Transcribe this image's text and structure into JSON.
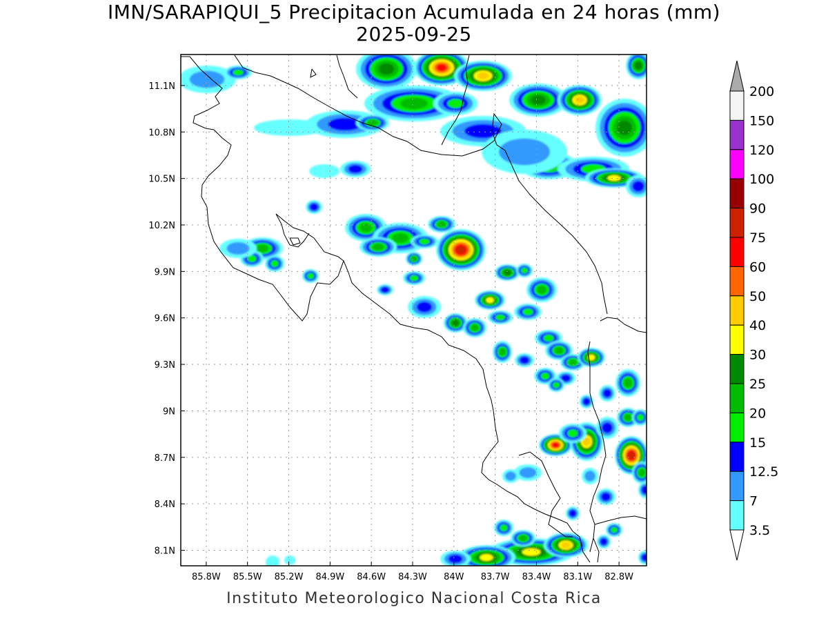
{
  "title": {
    "line1": "IMN/SARAPIQUI_5 Precipitacion Acumulada en 24 horas (mm)",
    "line2": "2025-09-25"
  },
  "footer": "Instituto Meteorologico Nacional Costa Rica",
  "map": {
    "lon_range": [
      -86.1,
      -83.1
    ],
    "lat_range": [
      8.0,
      11.3
    ],
    "lon_ticks": [
      {
        "value": -85.8,
        "label": "85.8W"
      },
      {
        "value": -85.5,
        "label": "85.5W"
      },
      {
        "value": -85.2,
        "label": "85.2W"
      },
      {
        "value": -84.9,
        "label": "84.9W"
      },
      {
        "value": -84.6,
        "label": "84.6W"
      },
      {
        "value": -84.3,
        "label": "84.3W"
      },
      {
        "value": -84.0,
        "label": "84W"
      },
      {
        "value": -83.7,
        "label": "83.7W"
      },
      {
        "value": -83.4,
        "label": "83.4W"
      },
      {
        "value": -83.1,
        "label": "83.1W"
      },
      {
        "value": -82.8,
        "label": "82.8W"
      }
    ],
    "lat_ticks": [
      {
        "value": 11.1,
        "label": "11.1N"
      },
      {
        "value": 10.8,
        "label": "10.8N"
      },
      {
        "value": 10.5,
        "label": "10.5N"
      },
      {
        "value": 10.2,
        "label": "10.2N"
      },
      {
        "value": 9.9,
        "label": "9.9N"
      },
      {
        "value": 9.6,
        "label": "9.6N"
      },
      {
        "value": 9.3,
        "label": "9.3N"
      },
      {
        "value": 9.0,
        "label": "9N"
      },
      {
        "value": 8.7,
        "label": "8.7N"
      },
      {
        "value": 8.4,
        "label": "8.4N"
      },
      {
        "value": 8.1,
        "label": "8.1N"
      }
    ],
    "grid": "dotted"
  },
  "colorbar": {
    "labels": [
      "3.5",
      "7",
      "12.5",
      "15",
      "20",
      "25",
      "30",
      "40",
      "50",
      "60",
      "75",
      "90",
      "100",
      "120",
      "150",
      "200"
    ],
    "colors": [
      "#66ffff",
      "#3399ff",
      "#0000ff",
      "#00ee00",
      "#00bb00",
      "#008800",
      "#ffff00",
      "#ffcc00",
      "#ff6600",
      "#ff0000",
      "#cc2200",
      "#990000",
      "#ff00ff",
      "#9933cc",
      "#f5f5f5"
    ],
    "low_arrow_color": "#ffffff",
    "high_arrow_color": "#aaaaaa"
  }
}
